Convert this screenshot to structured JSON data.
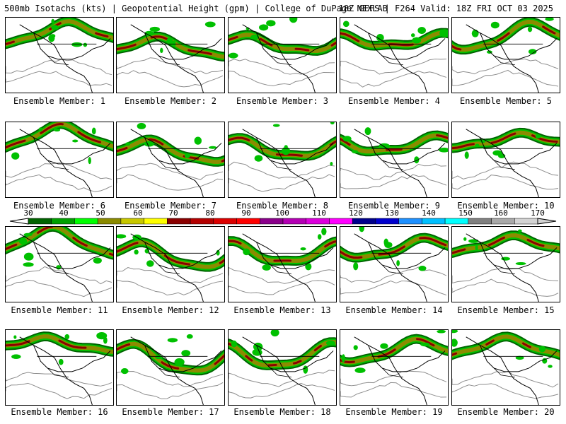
{
  "header": {
    "left": "500mb Isotachs (kts) | Geopotential Height (gpm) | College of DuPage NEXLAB",
    "right": "18Z GEFS | F264 Valid: 18Z FRI OCT 03 2025"
  },
  "colorbar": {
    "ticks": [
      "30",
      "40",
      "50",
      "60",
      "70",
      "80",
      "90",
      "100",
      "110",
      "120",
      "130",
      "140",
      "150",
      "160",
      "170"
    ],
    "colors": [
      "#006400",
      "#00a000",
      "#00ff00",
      "#8b8b00",
      "#c8c800",
      "#ffff00",
      "#8b0000",
      "#b40000",
      "#dc0000",
      "#ff0000",
      "#8b008b",
      "#b400b4",
      "#dc00dc",
      "#ff00ff",
      "#00008b",
      "#0000cd",
      "#1e90ff",
      "#00bfff",
      "#00ffff",
      "#808080",
      "#a9a9a9",
      "#d3d3d3"
    ]
  },
  "members": [
    {
      "label": "Ensemble Member: 1"
    },
    {
      "label": "Ensemble Member: 2"
    },
    {
      "label": "Ensemble Member: 3"
    },
    {
      "label": "Ensemble Member: 4"
    },
    {
      "label": "Ensemble Member: 5"
    },
    {
      "label": "Ensemble Member: 6"
    },
    {
      "label": "Ensemble Member: 7"
    },
    {
      "label": "Ensemble Member: 8"
    },
    {
      "label": "Ensemble Member: 9"
    },
    {
      "label": "Ensemble Member: 10"
    },
    {
      "label": "Ensemble Member: 11"
    },
    {
      "label": "Ensemble Member: 12"
    },
    {
      "label": "Ensemble Member: 13"
    },
    {
      "label": "Ensemble Member: 14"
    },
    {
      "label": "Ensemble Member: 15"
    },
    {
      "label": "Ensemble Member: 16"
    },
    {
      "label": "Ensemble Member: 17"
    },
    {
      "label": "Ensemble Member: 18"
    },
    {
      "label": "Ensemble Member: 19"
    },
    {
      "label": "Ensemble Member: 20"
    }
  ]
}
